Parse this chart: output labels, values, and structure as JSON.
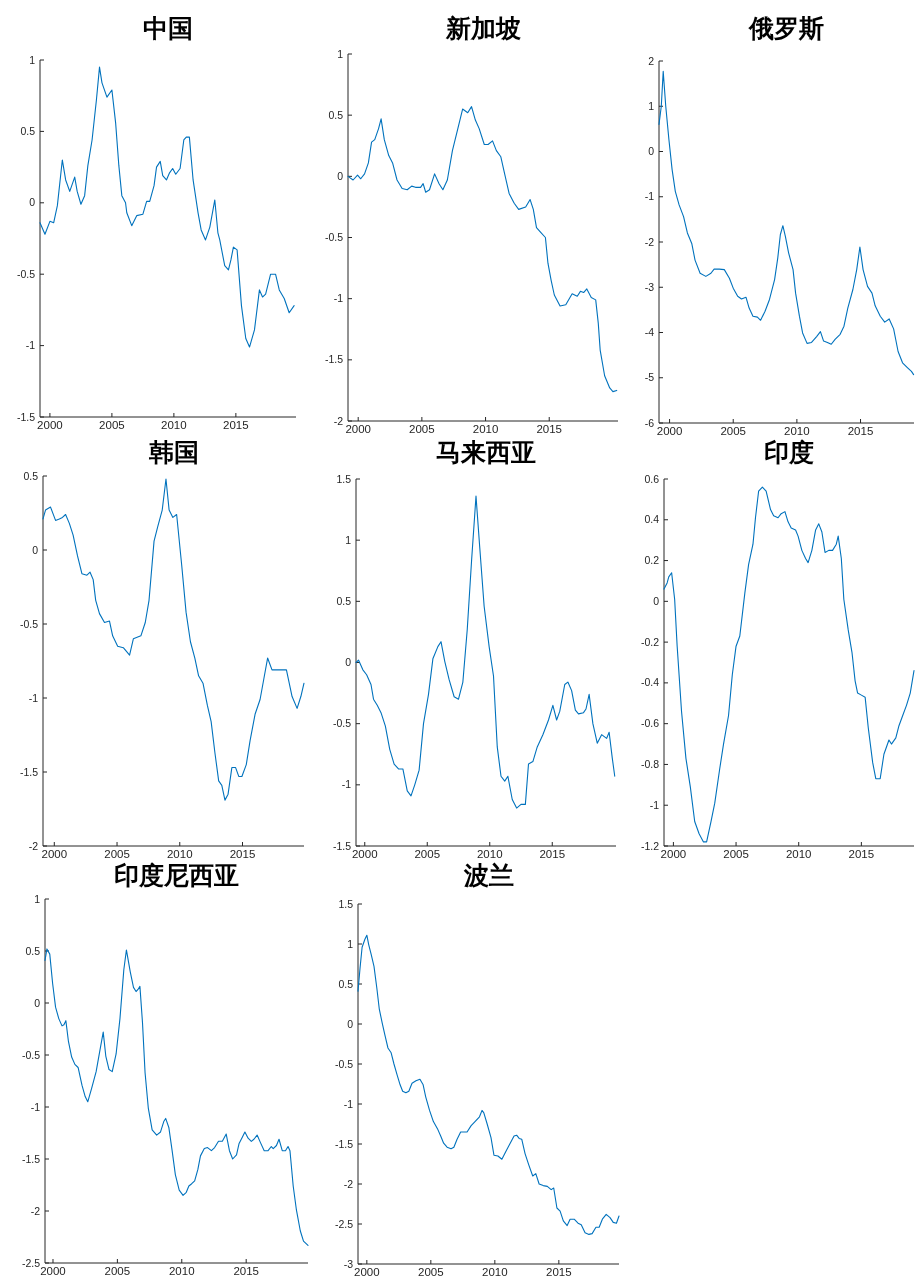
{
  "chart_data": [
    {
      "type": "line",
      "title": "中国",
      "color": "#0072bd",
      "xlim": [
        1999.2,
        2019.85
      ],
      "ylim": [
        -1.5,
        1
      ],
      "xticks": [
        2000,
        2005,
        2010,
        2015
      ],
      "yticks": [
        -1.5,
        -1,
        -0.5,
        0,
        0.5,
        1
      ],
      "x": [
        1999.2,
        1999.6,
        2000.0,
        2000.3,
        2000.6,
        2001.0,
        2001.27,
        2001.6,
        2002.0,
        2002.2,
        2002.5,
        2002.8,
        2003.06,
        2003.4,
        2003.75,
        2004.0,
        2004.2,
        2004.6,
        2005.0,
        2005.3,
        2005.56,
        2005.8,
        2006.1,
        2006.2,
        2006.6,
        2007.0,
        2007.5,
        2007.8,
        2008.05,
        2008.4,
        2008.6,
        2008.9,
        2009.1,
        2009.4,
        2009.65,
        2009.9,
        2010.15,
        2010.5,
        2010.8,
        2011.0,
        2011.25,
        2011.55,
        2011.95,
        2012.2,
        2012.55,
        2012.9,
        2013.3,
        2013.55,
        2013.7,
        2014.1,
        2014.4,
        2014.6,
        2014.8,
        2015.1,
        2015.45,
        2015.8,
        2016.1,
        2016.5,
        2016.9,
        2017.15,
        2017.4,
        2017.8,
        2018.2,
        2018.5,
        2018.9,
        2019.3,
        2019.7
      ],
      "values": [
        -0.14,
        -0.22,
        -0.13,
        -0.14,
        -0.02,
        0.3,
        0.16,
        0.08,
        0.18,
        0.08,
        -0.01,
        0.05,
        0.26,
        0.44,
        0.72,
        0.95,
        0.84,
        0.74,
        0.79,
        0.56,
        0.26,
        0.05,
        0.0,
        -0.07,
        -0.16,
        -0.09,
        -0.08,
        0.01,
        0.01,
        0.12,
        0.25,
        0.29,
        0.19,
        0.16,
        0.21,
        0.24,
        0.2,
        0.24,
        0.44,
        0.46,
        0.46,
        0.16,
        -0.07,
        -0.19,
        -0.26,
        -0.17,
        0.02,
        -0.21,
        -0.26,
        -0.44,
        -0.47,
        -0.4,
        -0.31,
        -0.33,
        -0.72,
        -0.95,
        -1.01,
        -0.89,
        -0.61,
        -0.66,
        -0.64,
        -0.5,
        -0.5,
        -0.61,
        -0.67,
        -0.77,
        -0.72
      ]
    },
    {
      "type": "line",
      "title": "新加坡",
      "color": "#0072bd",
      "xlim": [
        1999.2,
        2020.4
      ],
      "ylim": [
        -2,
        1
      ],
      "xticks": [
        2000,
        2005,
        2010,
        2015
      ],
      "yticks": [
        -2,
        -1.5,
        -1,
        -0.5,
        0,
        0.5,
        1
      ],
      "x": [
        1999.2,
        1999.6,
        1999.95,
        2000.2,
        2000.5,
        2000.8,
        2001.05,
        2001.3,
        2001.6,
        2001.8,
        2002.05,
        2002.4,
        2002.7,
        2003.05,
        2003.45,
        2003.85,
        2004.2,
        2004.5,
        2004.9,
        2005.1,
        2005.3,
        2005.6,
        2006.0,
        2006.35,
        2006.65,
        2007.0,
        2007.4,
        2007.8,
        2008.2,
        2008.6,
        2008.9,
        2009.2,
        2009.5,
        2009.9,
        2010.2,
        2010.55,
        2010.85,
        2011.2,
        2011.5,
        2011.85,
        2012.25,
        2012.6,
        2013.15,
        2013.5,
        2013.75,
        2014.0,
        2014.35,
        2014.7,
        2014.9,
        2015.15,
        2015.4,
        2015.85,
        2016.3,
        2016.8,
        2017.2,
        2017.45,
        2017.7,
        2017.95,
        2018.3,
        2018.65,
        2018.85,
        2019.0,
        2019.35,
        2019.75,
        2020.0,
        2020.3
      ],
      "values": [
        0,
        -0.03,
        0.01,
        -0.02,
        0.02,
        0.11,
        0.28,
        0.3,
        0.39,
        0.47,
        0.3,
        0.17,
        0.11,
        -0.03,
        -0.1,
        -0.11,
        -0.08,
        -0.09,
        -0.09,
        -0.06,
        -0.13,
        -0.11,
        0.02,
        -0.06,
        -0.11,
        -0.03,
        0.21,
        0.38,
        0.55,
        0.52,
        0.57,
        0.46,
        0.39,
        0.26,
        0.26,
        0.29,
        0.21,
        0.16,
        0.02,
        -0.14,
        -0.22,
        -0.27,
        -0.25,
        -0.19,
        -0.27,
        -0.42,
        -0.46,
        -0.5,
        -0.71,
        -0.85,
        -0.97,
        -1.06,
        -1.05,
        -0.96,
        -0.98,
        -0.94,
        -0.95,
        -0.92,
        -0.99,
        -1.01,
        -1.2,
        -1.42,
        -1.63,
        -1.73,
        -1.76,
        -1.75
      ]
    },
    {
      "type": "line",
      "title": "俄罗斯",
      "color": "#0072bd",
      "xlim": [
        1999.17,
        2019.2
      ],
      "ylim": [
        -6,
        2
      ],
      "xticks": [
        2000,
        2005,
        2010,
        2015
      ],
      "yticks": [
        -6,
        -5,
        -4,
        -3,
        -2,
        -1,
        0,
        1,
        2
      ],
      "x": [
        1999.17,
        1999.35,
        1999.5,
        1999.7,
        1999.95,
        2000.2,
        2000.45,
        2000.75,
        2001.1,
        2001.4,
        2001.75,
        2002.0,
        2002.4,
        2002.85,
        2003.25,
        2003.5,
        2003.9,
        2004.3,
        2004.7,
        2005.0,
        2005.35,
        2005.65,
        2006.0,
        2006.25,
        2006.55,
        2006.9,
        2007.15,
        2007.5,
        2007.85,
        2008.25,
        2008.5,
        2008.7,
        2008.9,
        2009.1,
        2009.35,
        2009.7,
        2009.9,
        2010.2,
        2010.45,
        2010.8,
        2011.15,
        2011.55,
        2011.85,
        2012.1,
        2012.4,
        2012.7,
        2013.0,
        2013.4,
        2013.7,
        2014.0,
        2014.4,
        2014.7,
        2014.95,
        2015.2,
        2015.55,
        2015.9,
        2016.15,
        2016.55,
        2016.9,
        2017.25,
        2017.6,
        2017.95,
        2018.3,
        2018.7,
        2019.0,
        2019.17
      ],
      "values": [
        0.6,
        1.0,
        1.77,
        1.0,
        0.26,
        -0.4,
        -0.88,
        -1.18,
        -1.44,
        -1.8,
        -2.04,
        -2.4,
        -2.69,
        -2.76,
        -2.69,
        -2.6,
        -2.6,
        -2.61,
        -2.8,
        -3.02,
        -3.2,
        -3.26,
        -3.22,
        -3.46,
        -3.64,
        -3.66,
        -3.73,
        -3.53,
        -3.27,
        -2.83,
        -2.35,
        -1.84,
        -1.64,
        -1.88,
        -2.24,
        -2.61,
        -3.13,
        -3.64,
        -4.01,
        -4.24,
        -4.22,
        -4.09,
        -3.98,
        -4.19,
        -4.22,
        -4.26,
        -4.15,
        -4.04,
        -3.86,
        -3.46,
        -3.05,
        -2.61,
        -2.11,
        -2.61,
        -2.98,
        -3.13,
        -3.41,
        -3.64,
        -3.77,
        -3.7,
        -3.92,
        -4.42,
        -4.67,
        -4.78,
        -4.86,
        -4.93
      ]
    },
    {
      "type": "line",
      "title": "韩国",
      "color": "#0072bd",
      "xlim": [
        1999.1,
        2019.9
      ],
      "ylim": [
        -2,
        0.5
      ],
      "xticks": [
        2000,
        2005,
        2010,
        2015
      ],
      "yticks": [
        -2,
        -1.5,
        -1,
        -0.5,
        0,
        0.5
      ],
      "x": [
        1999.1,
        1999.3,
        1999.5,
        1999.7,
        2000.1,
        2000.4,
        2000.65,
        2000.9,
        2001.2,
        2001.5,
        2001.85,
        2002.2,
        2002.6,
        2002.85,
        2003.1,
        2003.3,
        2003.6,
        2004.0,
        2004.4,
        2004.65,
        2005.05,
        2005.5,
        2006.0,
        2006.3,
        2006.9,
        2007.25,
        2007.55,
        2007.95,
        2008.25,
        2008.6,
        2008.9,
        2009.15,
        2009.45,
        2009.75,
        2010.15,
        2010.5,
        2010.85,
        2011.2,
        2011.5,
        2011.85,
        2012.2,
        2012.5,
        2012.8,
        2013.1,
        2013.35,
        2013.6,
        2013.85,
        2014.15,
        2014.45,
        2014.7,
        2014.95,
        2015.3,
        2015.6,
        2016.0,
        2016.4,
        2016.7,
        2017.0,
        2017.35,
        2017.65,
        2018.0,
        2018.5,
        2018.95,
        2019.35,
        2019.65,
        2019.9
      ],
      "values": [
        0.21,
        0.27,
        0.28,
        0.29,
        0.2,
        0.21,
        0.22,
        0.24,
        0.18,
        0.1,
        -0.04,
        -0.16,
        -0.17,
        -0.15,
        -0.2,
        -0.34,
        -0.43,
        -0.49,
        -0.48,
        -0.58,
        -0.65,
        -0.66,
        -0.71,
        -0.6,
        -0.58,
        -0.49,
        -0.34,
        0.06,
        0.16,
        0.27,
        0.48,
        0.27,
        0.22,
        0.24,
        -0.1,
        -0.42,
        -0.62,
        -0.73,
        -0.85,
        -0.9,
        -1.05,
        -1.16,
        -1.37,
        -1.56,
        -1.59,
        -1.69,
        -1.65,
        -1.47,
        -1.47,
        -1.53,
        -1.53,
        -1.45,
        -1.29,
        -1.11,
        -1.01,
        -0.87,
        -0.73,
        -0.81,
        -0.81,
        -0.81,
        -0.81,
        -0.99,
        -1.07,
        -0.99,
        -0.9
      ]
    },
    {
      "type": "line",
      "title": "马来西亚",
      "color": "#0072bd",
      "xlim": [
        1999.3,
        2020.1
      ],
      "ylim": [
        -1.5,
        1.5
      ],
      "xticks": [
        2000,
        2005,
        2010,
        2015
      ],
      "yticks": [
        -1.5,
        -1,
        -0.5,
        0,
        0.5,
        1,
        1.5
      ],
      "x": [
        1999.3,
        1999.5,
        1999.85,
        2000.15,
        2000.5,
        2000.7,
        2001.0,
        2001.3,
        2001.65,
        2002.0,
        2002.35,
        2002.7,
        2003.05,
        2003.4,
        2003.7,
        2004.0,
        2004.35,
        2004.7,
        2005.1,
        2005.45,
        2005.85,
        2006.1,
        2006.4,
        2006.75,
        2007.15,
        2007.5,
        2007.85,
        2008.2,
        2008.55,
        2008.9,
        2009.2,
        2009.55,
        2009.95,
        2010.3,
        2010.6,
        2010.9,
        2011.2,
        2011.45,
        2011.8,
        2012.15,
        2012.5,
        2012.85,
        2013.1,
        2013.45,
        2013.8,
        2014.25,
        2014.7,
        2015.05,
        2015.35,
        2015.6,
        2016.0,
        2016.25,
        2016.55,
        2016.85,
        2017.1,
        2017.5,
        2017.7,
        2017.95,
        2018.25,
        2018.6,
        2018.95,
        2019.35,
        2019.55,
        2019.8,
        2020.0
      ],
      "values": [
        0,
        0.02,
        -0.06,
        -0.1,
        -0.18,
        -0.3,
        -0.35,
        -0.41,
        -0.52,
        -0.71,
        -0.83,
        -0.87,
        -0.87,
        -1.05,
        -1.09,
        -1.0,
        -0.88,
        -0.5,
        -0.26,
        0.03,
        0.13,
        0.17,
        0.01,
        -0.14,
        -0.28,
        -0.3,
        -0.16,
        0.27,
        0.84,
        1.36,
        0.94,
        0.46,
        0.13,
        -0.11,
        -0.69,
        -0.93,
        -0.97,
        -0.93,
        -1.12,
        -1.19,
        -1.16,
        -1.16,
        -0.83,
        -0.81,
        -0.69,
        -0.59,
        -0.47,
        -0.35,
        -0.47,
        -0.4,
        -0.18,
        -0.16,
        -0.23,
        -0.39,
        -0.42,
        -0.41,
        -0.38,
        -0.26,
        -0.5,
        -0.66,
        -0.59,
        -0.62,
        -0.57,
        -0.78,
        -0.93
      ]
    },
    {
      "type": "line",
      "title": "印度",
      "color": "#0072bd",
      "xlim": [
        1999.25,
        2019.2
      ],
      "ylim": [
        -1.2,
        0.6
      ],
      "xticks": [
        2000,
        2005,
        2010,
        2015
      ],
      "yticks": [
        -1.2,
        -1,
        -0.8,
        -0.6,
        -0.4,
        -0.2,
        0,
        0.2,
        0.4,
        0.6
      ],
      "x": [
        1999.25,
        1999.5,
        1999.63,
        1999.86,
        2000.1,
        2000.3,
        2000.65,
        2001.0,
        2001.35,
        2001.7,
        2002.05,
        2002.4,
        2002.65,
        2003.0,
        2003.3,
        2003.7,
        2004.0,
        2004.4,
        2004.7,
        2005.0,
        2005.3,
        2005.7,
        2006.0,
        2006.35,
        2006.55,
        2006.8,
        2007.1,
        2007.4,
        2007.75,
        2008.0,
        2008.35,
        2008.6,
        2008.9,
        2009.15,
        2009.4,
        2009.75,
        2009.95,
        2010.25,
        2010.55,
        2010.75,
        2011.05,
        2011.35,
        2011.6,
        2011.85,
        2012.1,
        2012.4,
        2012.7,
        2013.0,
        2013.15,
        2013.4,
        2013.6,
        2013.95,
        2014.25,
        2014.5,
        2014.7,
        2015.0,
        2015.3,
        2015.55,
        2015.9,
        2016.15,
        2016.5,
        2016.8,
        2017.2,
        2017.4,
        2017.75,
        2018.0,
        2018.3,
        2018.6,
        2018.9,
        2019.2
      ],
      "values": [
        0.06,
        0.09,
        0.12,
        0.14,
        0.01,
        -0.22,
        -0.54,
        -0.77,
        -0.91,
        -1.08,
        -1.14,
        -1.18,
        -1.18,
        -1.08,
        -0.99,
        -0.82,
        -0.7,
        -0.56,
        -0.36,
        -0.22,
        -0.17,
        0.04,
        0.18,
        0.28,
        0.41,
        0.54,
        0.56,
        0.54,
        0.45,
        0.42,
        0.41,
        0.43,
        0.44,
        0.39,
        0.36,
        0.35,
        0.32,
        0.25,
        0.21,
        0.19,
        0.25,
        0.35,
        0.38,
        0.34,
        0.24,
        0.25,
        0.25,
        0.28,
        0.32,
        0.21,
        0.01,
        -0.14,
        -0.25,
        -0.39,
        -0.45,
        -0.46,
        -0.47,
        -0.62,
        -0.79,
        -0.87,
        -0.87,
        -0.75,
        -0.68,
        -0.7,
        -0.67,
        -0.61,
        -0.56,
        -0.51,
        -0.45,
        -0.34
      ]
    },
    {
      "type": "line",
      "title": "印度尼西亚",
      "color": "#0072bd",
      "xlim": [
        1999.38,
        2019.8
      ],
      "ylim": [
        -2.5,
        1
      ],
      "xticks": [
        2000,
        2005,
        2010,
        2015
      ],
      "yticks": [
        -2.5,
        -2,
        -1.5,
        -1,
        -0.5,
        0,
        0.5,
        1
      ],
      "x": [
        1999.38,
        1999.53,
        1999.75,
        1999.97,
        2000.2,
        2000.45,
        2000.7,
        2000.85,
        2001.0,
        2001.2,
        2001.45,
        2001.7,
        2001.95,
        2002.25,
        2002.5,
        2002.7,
        2003.0,
        2003.35,
        2003.65,
        2003.9,
        2004.1,
        2004.35,
        2004.6,
        2004.9,
        2005.2,
        2005.5,
        2005.7,
        2006.0,
        2006.25,
        2006.45,
        2006.6,
        2006.75,
        2006.95,
        2007.15,
        2007.4,
        2007.7,
        2008.05,
        2008.35,
        2008.6,
        2008.75,
        2009.0,
        2009.25,
        2009.5,
        2009.8,
        2010.1,
        2010.35,
        2010.55,
        2010.75,
        2011.0,
        2011.25,
        2011.45,
        2011.75,
        2012.0,
        2012.3,
        2012.55,
        2012.85,
        2013.15,
        2013.45,
        2013.7,
        2013.95,
        2014.25,
        2014.45,
        2014.7,
        2014.9,
        2015.15,
        2015.4,
        2015.6,
        2015.85,
        2016.1,
        2016.4,
        2016.7,
        2016.95,
        2017.1,
        2017.35,
        2017.55,
        2017.8,
        2018.05,
        2018.25,
        2018.4,
        2018.65,
        2018.9,
        2019.2,
        2019.45,
        2019.8
      ],
      "values": [
        0.41,
        0.52,
        0.47,
        0.19,
        -0.04,
        -0.15,
        -0.22,
        -0.21,
        -0.17,
        -0.37,
        -0.52,
        -0.59,
        -0.62,
        -0.79,
        -0.9,
        -0.95,
        -0.82,
        -0.66,
        -0.45,
        -0.28,
        -0.51,
        -0.64,
        -0.66,
        -0.49,
        -0.15,
        0.32,
        0.51,
        0.3,
        0.15,
        0.11,
        0.13,
        0.16,
        -0.19,
        -0.67,
        -1.01,
        -1.22,
        -1.27,
        -1.24,
        -1.14,
        -1.11,
        -1.2,
        -1.42,
        -1.65,
        -1.8,
        -1.85,
        -1.82,
        -1.76,
        -1.74,
        -1.71,
        -1.6,
        -1.47,
        -1.4,
        -1.39,
        -1.42,
        -1.39,
        -1.33,
        -1.33,
        -1.26,
        -1.42,
        -1.5,
        -1.46,
        -1.35,
        -1.29,
        -1.24,
        -1.3,
        -1.33,
        -1.31,
        -1.27,
        -1.34,
        -1.42,
        -1.42,
        -1.38,
        -1.4,
        -1.37,
        -1.31,
        -1.42,
        -1.42,
        -1.38,
        -1.42,
        -1.76,
        -1.99,
        -2.19,
        -2.29,
        -2.33
      ]
    },
    {
      "type": "line",
      "title": "波兰",
      "color": "#0072bd",
      "xlim": [
        1999.31,
        2019.7
      ],
      "ylim": [
        -3,
        1.5
      ],
      "xticks": [
        2000,
        2005,
        2010,
        2015
      ],
      "yticks": [
        -3,
        -2.5,
        -2,
        -1.5,
        -1,
        -0.5,
        0,
        0.5,
        1,
        1.5
      ],
      "x": [
        1999.31,
        1999.47,
        1999.63,
        1999.85,
        2000.0,
        2000.15,
        2000.34,
        2000.56,
        2000.78,
        2000.97,
        2001.19,
        2001.4,
        2001.65,
        2001.9,
        2002.12,
        2002.37,
        2002.6,
        2002.8,
        2003.05,
        2003.28,
        2003.53,
        2003.84,
        2004.15,
        2004.4,
        2004.6,
        2004.9,
        2005.2,
        2005.55,
        2005.77,
        2006.0,
        2006.27,
        2006.58,
        2006.8,
        2007.05,
        2007.33,
        2007.6,
        2007.83,
        2008.15,
        2008.45,
        2008.8,
        2009.0,
        2009.14,
        2009.4,
        2009.7,
        2009.93,
        2010.24,
        2010.55,
        2010.87,
        2011.2,
        2011.5,
        2011.7,
        2011.9,
        2012.1,
        2012.36,
        2012.65,
        2012.96,
        2013.2,
        2013.46,
        2013.78,
        2014.1,
        2014.4,
        2014.6,
        2014.85,
        2015.1,
        2015.35,
        2015.65,
        2015.88,
        2016.2,
        2016.5,
        2016.75,
        2017.05,
        2017.35,
        2017.6,
        2017.9,
        2018.15,
        2018.4,
        2018.7,
        2019.0,
        2019.25,
        2019.5,
        2019.7
      ],
      "values": [
        0.41,
        0.7,
        0.96,
        1.06,
        1.11,
        0.99,
        0.87,
        0.72,
        0.45,
        0.19,
        0.02,
        -0.13,
        -0.3,
        -0.36,
        -0.5,
        -0.64,
        -0.76,
        -0.84,
        -0.86,
        -0.84,
        -0.74,
        -0.71,
        -0.69,
        -0.76,
        -0.91,
        -1.08,
        -1.22,
        -1.32,
        -1.4,
        -1.49,
        -1.54,
        -1.56,
        -1.54,
        -1.44,
        -1.35,
        -1.35,
        -1.35,
        -1.27,
        -1.22,
        -1.16,
        -1.08,
        -1.11,
        -1.25,
        -1.42,
        -1.64,
        -1.65,
        -1.69,
        -1.59,
        -1.49,
        -1.4,
        -1.39,
        -1.43,
        -1.44,
        -1.62,
        -1.76,
        -1.9,
        -1.87,
        -2.0,
        -2.02,
        -2.03,
        -2.07,
        -2.05,
        -2.3,
        -2.34,
        -2.46,
        -2.52,
        -2.44,
        -2.44,
        -2.49,
        -2.51,
        -2.61,
        -2.63,
        -2.62,
        -2.54,
        -2.54,
        -2.44,
        -2.38,
        -2.42,
        -2.48,
        -2.49,
        -2.4
      ]
    }
  ]
}
